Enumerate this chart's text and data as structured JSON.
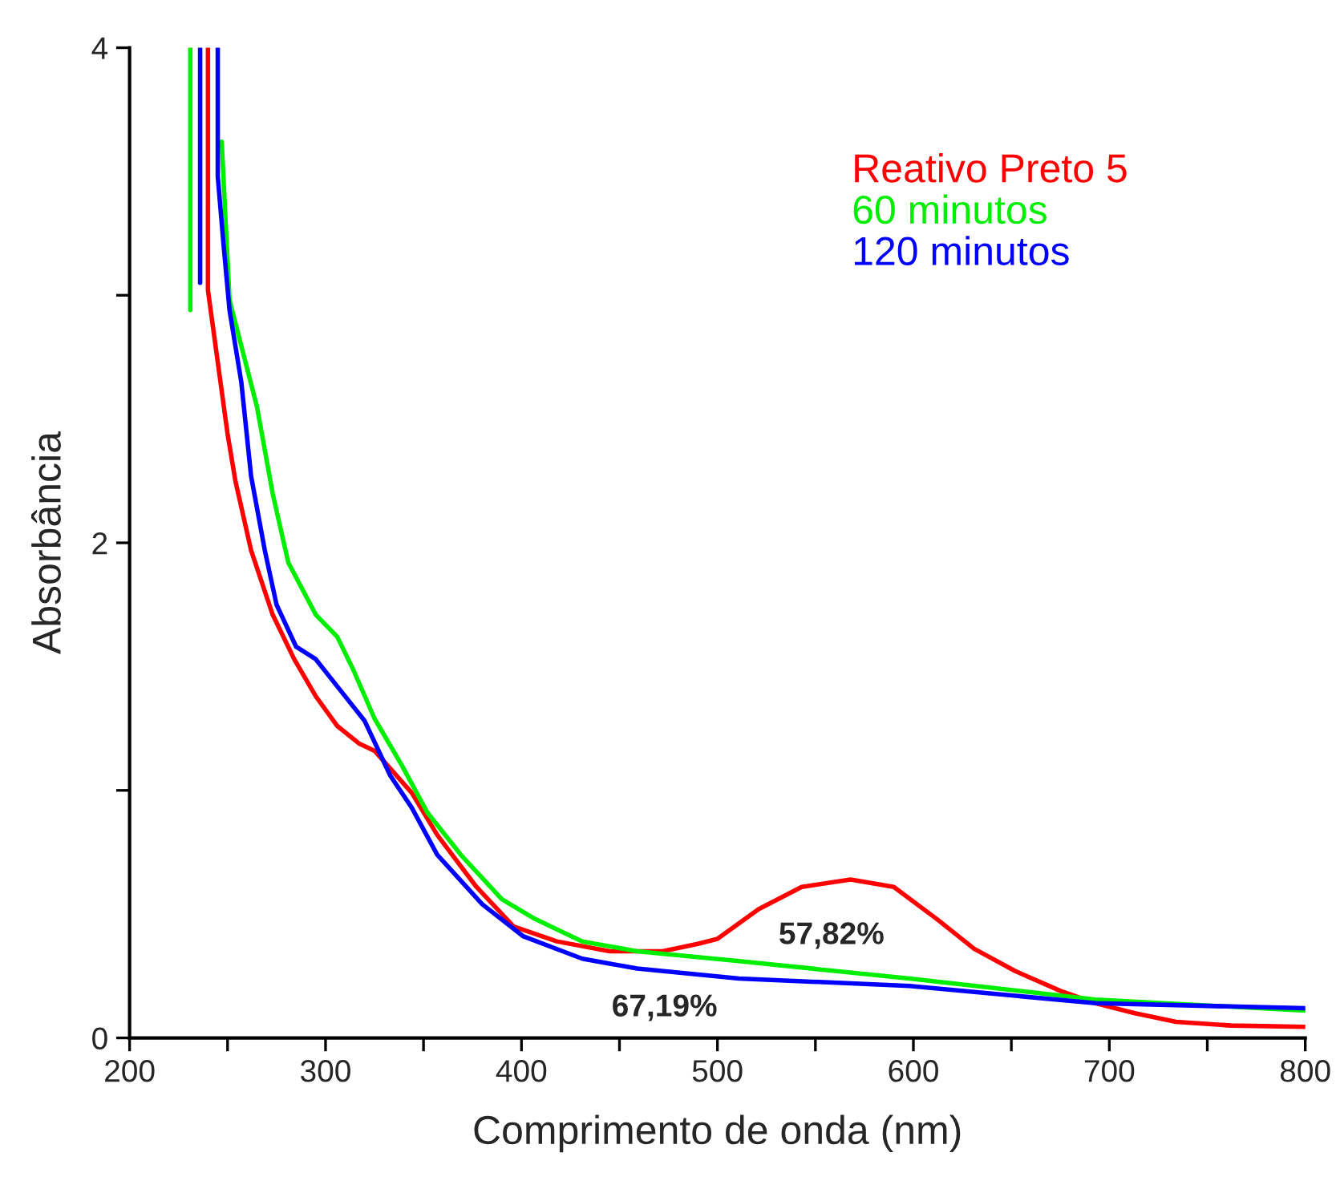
{
  "chart_data": {
    "type": "line",
    "xlabel": "Comprimento de onda (nm)",
    "ylabel": "Absorbância",
    "xlim": [
      200,
      800
    ],
    "ylim": [
      0,
      4
    ],
    "xticks": [
      200,
      {
        "value": 250,
        "label": null
      },
      300,
      {
        "value": 350,
        "label": null
      },
      400,
      {
        "value": 450,
        "label": null
      },
      500,
      {
        "value": 550,
        "label": null
      },
      600,
      {
        "value": 650,
        "label": null
      },
      700,
      {
        "value": 750,
        "label": null
      },
      800
    ],
    "yticks": [
      0,
      {
        "value": 1,
        "label": null
      },
      2,
      {
        "value": 3,
        "label": null
      },
      4
    ],
    "grid": false,
    "legend": "top right",
    "marker": "none",
    "line_style": "solid",
    "annotations": [
      "57,82%",
      "67,19%"
    ],
    "series": [
      {
        "name": "Reativo Preto 5",
        "color": "#ff0000",
        "x": [
          240,
          240,
          250,
          254,
          262,
          273,
          284,
          295,
          306,
          317,
          325,
          344,
          357,
          377,
          396,
          418,
          445,
          472,
          490,
          500,
          521,
          543,
          568,
          590,
          612,
          631,
          652,
          675,
          693,
          713,
          734,
          762,
          800
        ],
        "values": [
          4.0,
          3.02,
          2.44,
          2.25,
          1.97,
          1.71,
          1.53,
          1.38,
          1.26,
          1.19,
          1.16,
          0.99,
          0.82,
          0.61,
          0.45,
          0.39,
          0.35,
          0.35,
          0.38,
          0.4,
          0.52,
          0.61,
          0.64,
          0.61,
          0.48,
          0.36,
          0.27,
          0.19,
          0.14,
          0.1,
          0.065,
          0.05,
          0.045
        ]
      },
      {
        "name": "60 minutos",
        "color": "#00ee00",
        "x": [
          231,
          231,
          239,
          247,
          251,
          265,
          273,
          281,
          295,
          306,
          314,
          325,
          339,
          352,
          369,
          390,
          407,
          431,
          459,
          511,
          598,
          693,
          800
        ],
        "values": [
          4.0,
          2.94,
          null,
          3.62,
          2.98,
          2.55,
          2.2,
          1.92,
          1.71,
          1.62,
          1.49,
          1.29,
          1.1,
          0.91,
          0.74,
          0.56,
          0.48,
          0.39,
          0.35,
          0.31,
          0.24,
          0.155,
          0.11
        ]
      },
      {
        "name": "120 minutos",
        "color": "#0000ff",
        "x": [
          236,
          236,
          240,
          245,
          245,
          248,
          251,
          257,
          262,
          269,
          275,
          285,
          295,
          306,
          320,
          333,
          344,
          357,
          380,
          401,
          431,
          459,
          511,
          598,
          693,
          800
        ],
        "values": [
          4.0,
          3.05,
          null,
          4.0,
          3.48,
          3.2,
          2.94,
          2.65,
          2.27,
          1.97,
          1.75,
          1.58,
          1.53,
          1.42,
          1.28,
          1.06,
          0.93,
          0.74,
          0.54,
          0.41,
          0.32,
          0.28,
          0.24,
          0.21,
          0.14,
          0.12
        ]
      }
    ]
  }
}
